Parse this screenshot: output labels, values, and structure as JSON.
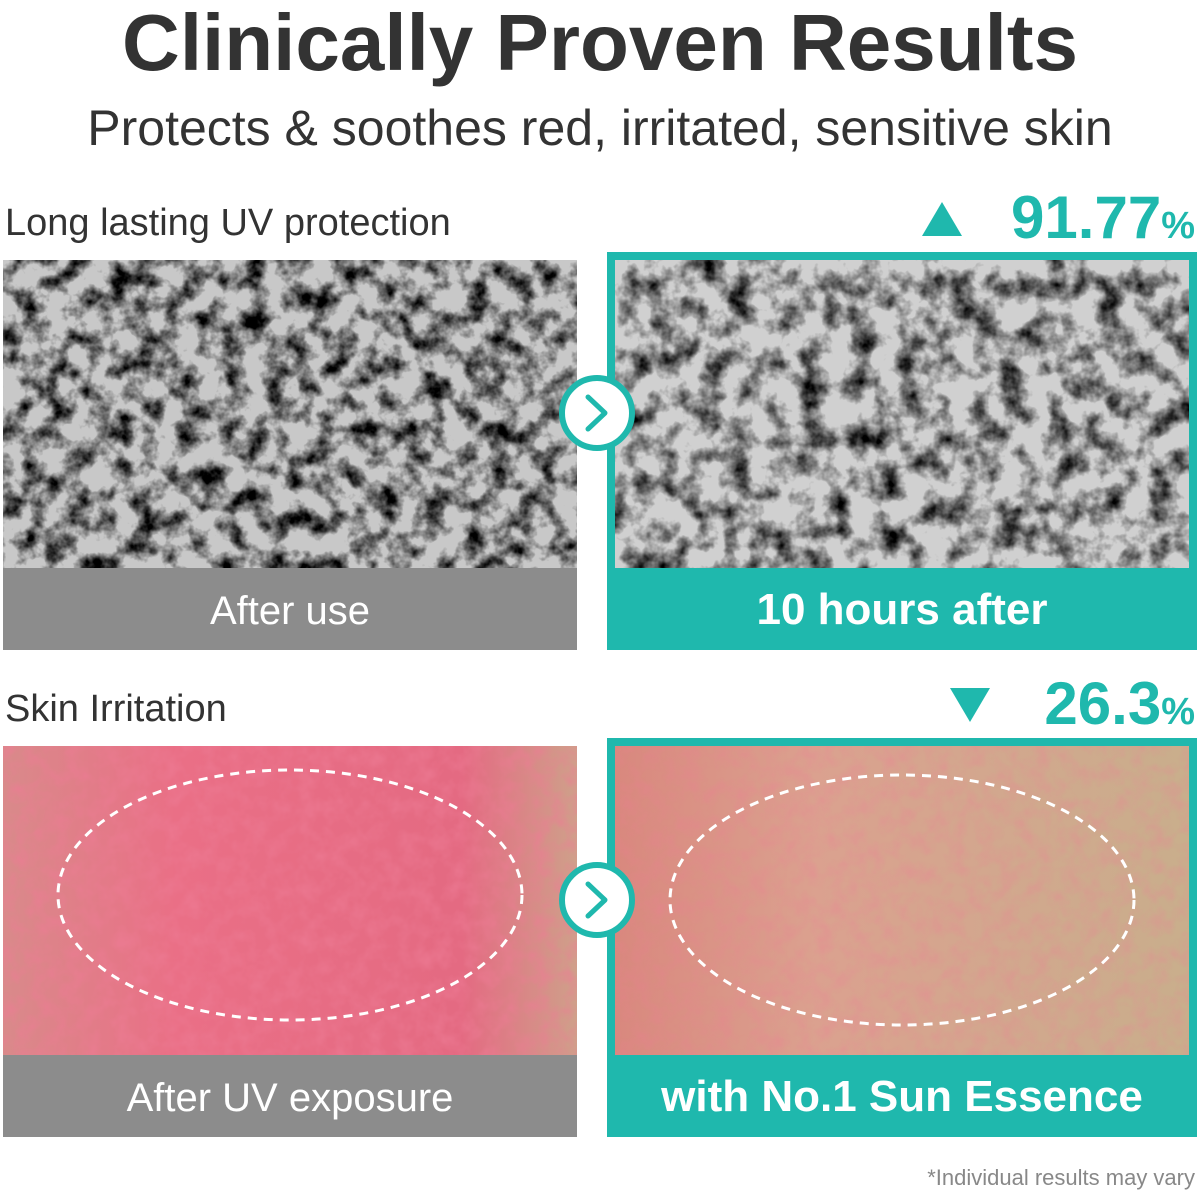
{
  "header": {
    "title": "Clinically Proven Results",
    "subtitle": "Protects & soothes red, irritated, sensitive skin"
  },
  "sections": [
    {
      "label": "Long lasting UV protection",
      "stat": {
        "value": "91.77",
        "unit": "%"
      },
      "before_caption": "After use",
      "after_caption": "10 hours after"
    },
    {
      "label": "Skin Irritation",
      "stat": {
        "value": "26.3",
        "unit": "%"
      },
      "before_caption": "After UV exposure",
      "after_caption": "with No.1 Sun Essence"
    }
  ],
  "footnote": "*Individual results may vary"
}
